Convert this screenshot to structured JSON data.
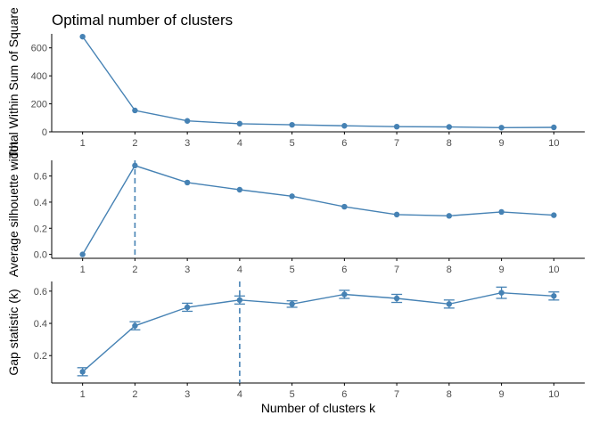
{
  "title": "Optimal number of clusters",
  "colors": {
    "series": "#4682B4",
    "axis": "#000000",
    "tick_text": "#4d4d4d",
    "background": "#ffffff"
  },
  "chart_data": [
    {
      "type": "line",
      "x": [
        1,
        2,
        3,
        4,
        5,
        6,
        7,
        8,
        9,
        10
      ],
      "y": [
        680,
        153,
        78,
        58,
        50,
        43,
        37,
        35,
        30,
        32
      ],
      "xlabel": "",
      "ylabel": "Total Within Sum of Square",
      "ylim": [
        0,
        700
      ],
      "yticks": [
        0,
        200,
        400,
        600
      ],
      "grid": false
    },
    {
      "type": "line",
      "x": [
        1,
        2,
        3,
        4,
        5,
        6,
        7,
        8,
        9,
        10
      ],
      "y": [
        0.0,
        0.68,
        0.55,
        0.495,
        0.445,
        0.365,
        0.305,
        0.295,
        0.325,
        0.3
      ],
      "xlabel": "",
      "ylabel": "Average silhouette width",
      "ylim": [
        -0.03,
        0.72
      ],
      "yticks": [
        0.0,
        0.2,
        0.4,
        0.6
      ],
      "vline": 2,
      "grid": false
    },
    {
      "type": "line",
      "x": [
        1,
        2,
        3,
        4,
        5,
        6,
        7,
        8,
        9,
        10
      ],
      "y": [
        0.1,
        0.385,
        0.5,
        0.545,
        0.52,
        0.58,
        0.555,
        0.52,
        0.59,
        0.57
      ],
      "err": [
        0.025,
        0.025,
        0.025,
        0.025,
        0.02,
        0.025,
        0.025,
        0.025,
        0.035,
        0.025
      ],
      "xlabel": "Number of clusters k",
      "ylabel": "Gap statistic (k)",
      "ylim": [
        0.03,
        0.66
      ],
      "yticks": [
        0.2,
        0.4,
        0.6
      ],
      "vline": 4,
      "grid": false
    }
  ]
}
